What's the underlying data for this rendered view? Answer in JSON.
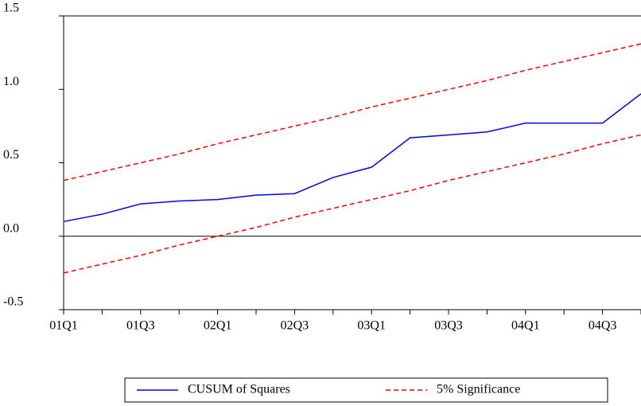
{
  "chart_data": {
    "type": "line",
    "categories": [
      "01Q1",
      null,
      "01Q3",
      null,
      "02Q1",
      null,
      "02Q3",
      null,
      "03Q1",
      null,
      "03Q3",
      null,
      "04Q1",
      null,
      "04Q3",
      null
    ],
    "series": [
      {
        "name": "CUSUM of Squares",
        "color": "#0000ff",
        "values": [
          0.1,
          0.15,
          0.22,
          0.24,
          0.25,
          0.28,
          0.29,
          0.4,
          0.47,
          0.67,
          0.69,
          0.71,
          0.77,
          0.77,
          0.77,
          0.97
        ]
      },
      {
        "name": "5% Significance",
        "color": "#ff0000",
        "dashed": true,
        "upper": [
          0.38,
          0.44,
          0.5,
          0.56,
          0.63,
          0.69,
          0.75,
          0.81,
          0.88,
          0.94,
          1.0,
          1.06,
          1.13,
          1.19,
          1.25,
          1.31
        ],
        "lower": [
          -0.25,
          -0.19,
          -0.13,
          -0.06,
          0,
          0.06,
          0.13,
          0.19,
          0.25,
          0.31,
          0.38,
          0.44,
          0.5,
          0.56,
          0.63,
          0.69
        ]
      }
    ],
    "ylim": [
      -0.5,
      1.5
    ],
    "yticks": [
      -0.5,
      {
        "value": 0,
        "label": "0.0"
      },
      0.5,
      {
        "value": 1,
        "label": "1.0"
      },
      1.5
    ],
    "zero_line": true
  }
}
